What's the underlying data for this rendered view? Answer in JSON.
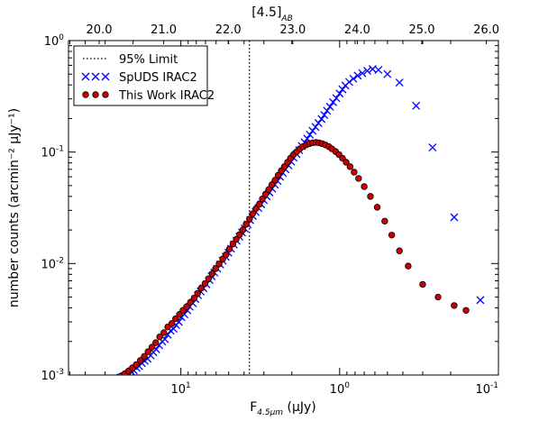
{
  "chart_data": {
    "type": "scatter",
    "x_axis": {
      "label_main": "F",
      "label_sub": "4.5μm",
      "label_unit": " (μJy)",
      "scale": "log",
      "inverted": true,
      "xlim": [
        51.0,
        0.1
      ],
      "ticks": [
        {
          "value": 10,
          "base": "10",
          "exp": "1"
        },
        {
          "value": 1,
          "base": "10",
          "exp": "0"
        },
        {
          "value": 0.1,
          "base": "10",
          "exp": "-1"
        }
      ]
    },
    "y_axis": {
      "label": "number counts (arcmin⁻² μJy⁻¹)",
      "scale": "log",
      "ylim": [
        0.001,
        1.0
      ],
      "ticks": [
        {
          "value": 0.001,
          "base": "10",
          "exp": "-3"
        },
        {
          "value": 0.01,
          "base": "10",
          "exp": "-2"
        },
        {
          "value": 0.1,
          "base": "10",
          "exp": "-1"
        },
        {
          "value": 1.0,
          "base": "10",
          "exp": "0"
        }
      ]
    },
    "top_axis": {
      "label": "[4.5]",
      "label_sub": "AB",
      "ticks": [
        "20.0",
        "21.0",
        "22.0",
        "23.0",
        "24.0",
        "25.0",
        "26.0"
      ]
    },
    "limit_line": {
      "x": 3.7,
      "label": "95% Limit"
    },
    "legend": {
      "position": "top-left"
    },
    "series": [
      {
        "name": "SpUDS IRAC2",
        "marker": "x",
        "color": "#0000ff",
        "points": [
          [
            24.0,
            0.00095
          ],
          [
            22.8,
            0.00098
          ],
          [
            22.0,
            0.001
          ],
          [
            21.2,
            0.00103
          ],
          [
            20.5,
            0.00107
          ],
          [
            19.8,
            0.0011
          ],
          [
            19.0,
            0.00116
          ],
          [
            18.3,
            0.0012
          ],
          [
            17.6,
            0.00128
          ],
          [
            16.9,
            0.00134
          ],
          [
            16.2,
            0.0014
          ],
          [
            15.5,
            0.0015
          ],
          [
            14.9,
            0.0016
          ],
          [
            14.3,
            0.0017
          ],
          [
            13.7,
            0.00185
          ],
          [
            13.1,
            0.002
          ],
          [
            12.6,
            0.0021
          ],
          [
            12.1,
            0.0023
          ],
          [
            11.6,
            0.0025
          ],
          [
            11.1,
            0.0026
          ],
          [
            10.7,
            0.0028
          ],
          [
            10.3,
            0.003
          ],
          [
            9.9,
            0.0033
          ],
          [
            9.5,
            0.0035
          ],
          [
            9.1,
            0.0038
          ],
          [
            8.8,
            0.0041
          ],
          [
            8.4,
            0.0044
          ],
          [
            8.1,
            0.0048
          ],
          [
            7.8,
            0.0052
          ],
          [
            7.5,
            0.0056
          ],
          [
            7.2,
            0.006
          ],
          [
            6.9,
            0.0065
          ],
          [
            6.6,
            0.0071
          ],
          [
            6.4,
            0.0077
          ],
          [
            6.15,
            0.0083
          ],
          [
            5.9,
            0.009
          ],
          [
            5.65,
            0.0098
          ],
          [
            5.45,
            0.0106
          ],
          [
            5.22,
            0.0115
          ],
          [
            5.02,
            0.0125
          ],
          [
            4.83,
            0.0136
          ],
          [
            4.64,
            0.0148
          ],
          [
            4.46,
            0.016
          ],
          [
            4.28,
            0.0174
          ],
          [
            4.12,
            0.019
          ],
          [
            3.96,
            0.0206
          ],
          [
            3.8,
            0.0224
          ],
          [
            3.66,
            0.0245
          ],
          [
            3.52,
            0.0267
          ],
          [
            3.38,
            0.029
          ],
          [
            3.25,
            0.0315
          ],
          [
            3.12,
            0.034
          ],
          [
            3.0,
            0.037
          ],
          [
            2.88,
            0.04
          ],
          [
            2.77,
            0.0435
          ],
          [
            2.66,
            0.047
          ],
          [
            2.56,
            0.051
          ],
          [
            2.46,
            0.055
          ],
          [
            2.37,
            0.06
          ],
          [
            2.28,
            0.065
          ],
          [
            2.19,
            0.07
          ],
          [
            2.1,
            0.076
          ],
          [
            2.02,
            0.082
          ],
          [
            1.95,
            0.089
          ],
          [
            1.87,
            0.096
          ],
          [
            1.8,
            0.104
          ],
          [
            1.73,
            0.113
          ],
          [
            1.66,
            0.122
          ],
          [
            1.6,
            0.132
          ],
          [
            1.54,
            0.143
          ],
          [
            1.48,
            0.155
          ],
          [
            1.42,
            0.168
          ],
          [
            1.36,
            0.182
          ],
          [
            1.3,
            0.198
          ],
          [
            1.25,
            0.215
          ],
          [
            1.2,
            0.235
          ],
          [
            1.15,
            0.255
          ],
          [
            1.1,
            0.28
          ],
          [
            1.05,
            0.305
          ],
          [
            1.0,
            0.335
          ],
          [
            0.96,
            0.365
          ],
          [
            0.92,
            0.395
          ],
          [
            0.87,
            0.425
          ],
          [
            0.82,
            0.455
          ],
          [
            0.77,
            0.485
          ],
          [
            0.72,
            0.51
          ],
          [
            0.67,
            0.535
          ],
          [
            0.62,
            0.555
          ],
          [
            0.57,
            0.545
          ],
          [
            0.5,
            0.5
          ],
          [
            0.42,
            0.42
          ],
          [
            0.33,
            0.26
          ],
          [
            0.26,
            0.11
          ],
          [
            0.19,
            0.026
          ],
          [
            0.13,
            0.0047
          ]
        ]
      },
      {
        "name": "This Work IRAC2",
        "marker": "o",
        "color": "#cc0000",
        "points": [
          [
            24.0,
            0.00097
          ],
          [
            22.5,
            0.00103
          ],
          [
            21.3,
            0.00109
          ],
          [
            20.2,
            0.00116
          ],
          [
            19.1,
            0.00124
          ],
          [
            18.0,
            0.00135
          ],
          [
            17.0,
            0.00147
          ],
          [
            16.1,
            0.00162
          ],
          [
            15.2,
            0.00178
          ],
          [
            14.4,
            0.00195
          ],
          [
            13.6,
            0.0022
          ],
          [
            12.8,
            0.0024
          ],
          [
            12.1,
            0.0027
          ],
          [
            11.4,
            0.0029
          ],
          [
            10.8,
            0.0032
          ],
          [
            10.2,
            0.0035
          ],
          [
            9.7,
            0.0038
          ],
          [
            9.2,
            0.0041
          ],
          [
            8.7,
            0.0045
          ],
          [
            8.25,
            0.0049
          ],
          [
            7.85,
            0.0054
          ],
          [
            7.45,
            0.006
          ],
          [
            7.05,
            0.0066
          ],
          [
            6.7,
            0.0073
          ],
          [
            6.35,
            0.0081
          ],
          [
            6.05,
            0.009
          ],
          [
            5.75,
            0.0099
          ],
          [
            5.45,
            0.011
          ],
          [
            5.2,
            0.012
          ],
          [
            4.95,
            0.0135
          ],
          [
            4.7,
            0.015
          ],
          [
            4.48,
            0.0165
          ],
          [
            4.27,
            0.0182
          ],
          [
            4.07,
            0.02
          ],
          [
            3.88,
            0.0225
          ],
          [
            3.7,
            0.025
          ],
          [
            3.53,
            0.028
          ],
          [
            3.37,
            0.031
          ],
          [
            3.21,
            0.034
          ],
          [
            3.07,
            0.038
          ],
          [
            2.93,
            0.042
          ],
          [
            2.8,
            0.046
          ],
          [
            2.67,
            0.051
          ],
          [
            2.55,
            0.056
          ],
          [
            2.44,
            0.062
          ],
          [
            2.33,
            0.068
          ],
          [
            2.23,
            0.074
          ],
          [
            2.13,
            0.081
          ],
          [
            2.04,
            0.088
          ],
          [
            1.95,
            0.095
          ],
          [
            1.86,
            0.101
          ],
          [
            1.78,
            0.107
          ],
          [
            1.7,
            0.112
          ],
          [
            1.62,
            0.116
          ],
          [
            1.55,
            0.119
          ],
          [
            1.48,
            0.121
          ],
          [
            1.41,
            0.122
          ],
          [
            1.35,
            0.121
          ],
          [
            1.29,
            0.119
          ],
          [
            1.23,
            0.116
          ],
          [
            1.17,
            0.112
          ],
          [
            1.12,
            0.107
          ],
          [
            1.06,
            0.101
          ],
          [
            1.01,
            0.095
          ],
          [
            0.96,
            0.088
          ],
          [
            0.91,
            0.081
          ],
          [
            0.86,
            0.074
          ],
          [
            0.81,
            0.066
          ],
          [
            0.76,
            0.058
          ],
          [
            0.7,
            0.049
          ],
          [
            0.64,
            0.04
          ],
          [
            0.58,
            0.032
          ],
          [
            0.52,
            0.024
          ],
          [
            0.47,
            0.018
          ],
          [
            0.42,
            0.013
          ],
          [
            0.37,
            0.0095
          ],
          [
            0.3,
            0.0065
          ],
          [
            0.24,
            0.005
          ],
          [
            0.19,
            0.0042
          ],
          [
            0.16,
            0.0038
          ]
        ]
      }
    ]
  }
}
